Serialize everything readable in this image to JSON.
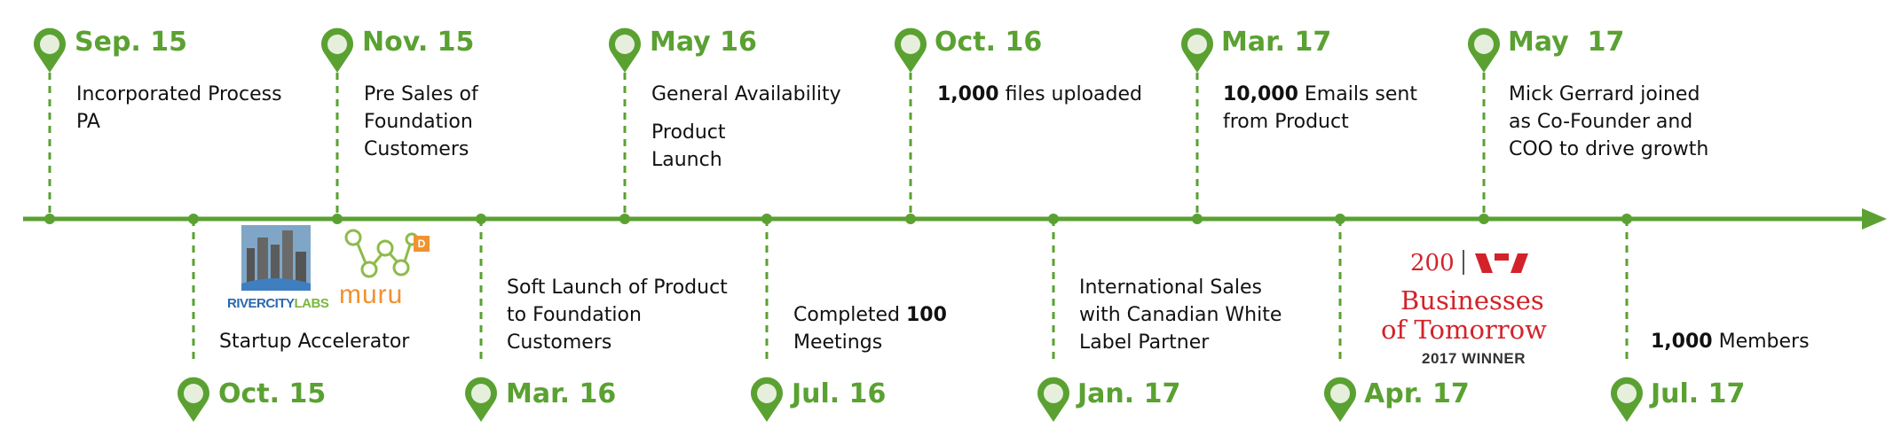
{
  "colors": {
    "accent": "#5aa132",
    "pin_fill": "#e6efdc",
    "text": "#111111",
    "westpac_red": "#d2232a",
    "muru_orange": "#f0922e",
    "rcl_blue": "#2a68b0",
    "rcl_green": "#79b83a"
  },
  "milestones_top": [
    {
      "date": "Sep. 15",
      "lines": [
        "Incorporated Process",
        "PA"
      ]
    },
    {
      "date": "Nov. 15",
      "lines": [
        "Pre Sales of",
        "Foundation",
        "Customers"
      ]
    },
    {
      "date": "May 16",
      "lines": [
        "General Availability"
      ],
      "lines2": [
        "Product",
        "Launch"
      ]
    },
    {
      "date": "Oct. 16",
      "bold": "1,000",
      "rest": " files uploaded"
    },
    {
      "date": "Mar. 17",
      "bold": "10,000",
      "rest": " Emails sent",
      "line2": "from Product"
    },
    {
      "date": "May  17",
      "lines": [
        "Mick Gerrard joined",
        "as Co-Founder and",
        "COO to drive growth"
      ]
    }
  ],
  "milestones_bottom": [
    {
      "date": "Oct. 15",
      "lines": [
        "Startup Accelerator"
      ]
    },
    {
      "date": "Mar. 16",
      "lines": [
        "Soft Launch of Product",
        "to Foundation",
        "Customers"
      ]
    },
    {
      "date": "Jul. 16",
      "pre": "Completed ",
      "bold": "100",
      "line2": "Meetings"
    },
    {
      "date": "Jan. 17",
      "lines": [
        "International Sales",
        "with Canadian White",
        "Label Partner"
      ]
    },
    {
      "date": "Apr. 17",
      "lines": []
    },
    {
      "date": "Jul. 17",
      "bold": "1,000",
      "rest": " Members"
    }
  ],
  "logos": {
    "rivercity": {
      "label_left": "RIVERCITY",
      "label_right": "LABS",
      "icon": "city-skyline-icon"
    },
    "muru": {
      "label": "muru",
      "badge": "D",
      "icon": "network-icon"
    },
    "westpac": {
      "number": "200",
      "brand_icon": "westpac-w-icon",
      "line1": "Businesses",
      "line2": "of Tomorrow",
      "winner": "2017 WINNER"
    }
  }
}
